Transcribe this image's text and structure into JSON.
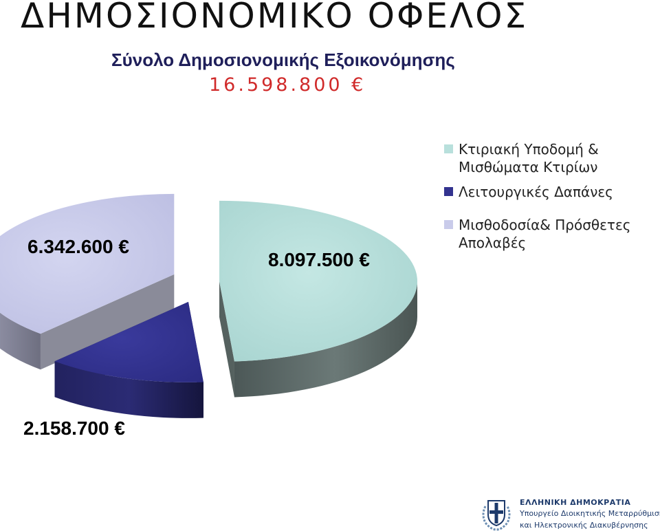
{
  "header": {
    "title": "ΔΗΜΟΣΙΟΝΟΜΙΚΟ ΟΦΕΛΟΣ",
    "subtitle": "Σύνολο Δημοσιονομικής Εξοικονόμησης",
    "total": "16.598.800 €"
  },
  "chart_data": {
    "type": "pie",
    "style": "3d-exploded",
    "legend_position": "right",
    "slices": [
      {
        "name": "Κτιριακή Υποδομή & Μισθώματα Κτιρίων",
        "value": 8097500,
        "label": "8.097.500 €",
        "color": "#b8e0dc",
        "side_color": "#55615f"
      },
      {
        "name": "Λειτουργικές Δαπάνες",
        "value": 2158700,
        "label": "2.158.700 €",
        "color": "#33338f",
        "side_color": "#1d1d54"
      },
      {
        "name": "Μισθοδοσία& Πρόσθετες Απολαβές",
        "value": 6342600,
        "label": "6.342.600 €",
        "color": "#c9cbea",
        "side_color": "#8a8b99"
      }
    ]
  },
  "footer": {
    "line1": "ΕΛΛΗΝΙΚΗ ΔΗΜΟΚΡΑΤΙΑ",
    "line2": "Υπουργείο Διοικητικής Μεταρρύθμισης",
    "line3": "και Ηλεκτρονικής Διακυβέρνησης"
  }
}
